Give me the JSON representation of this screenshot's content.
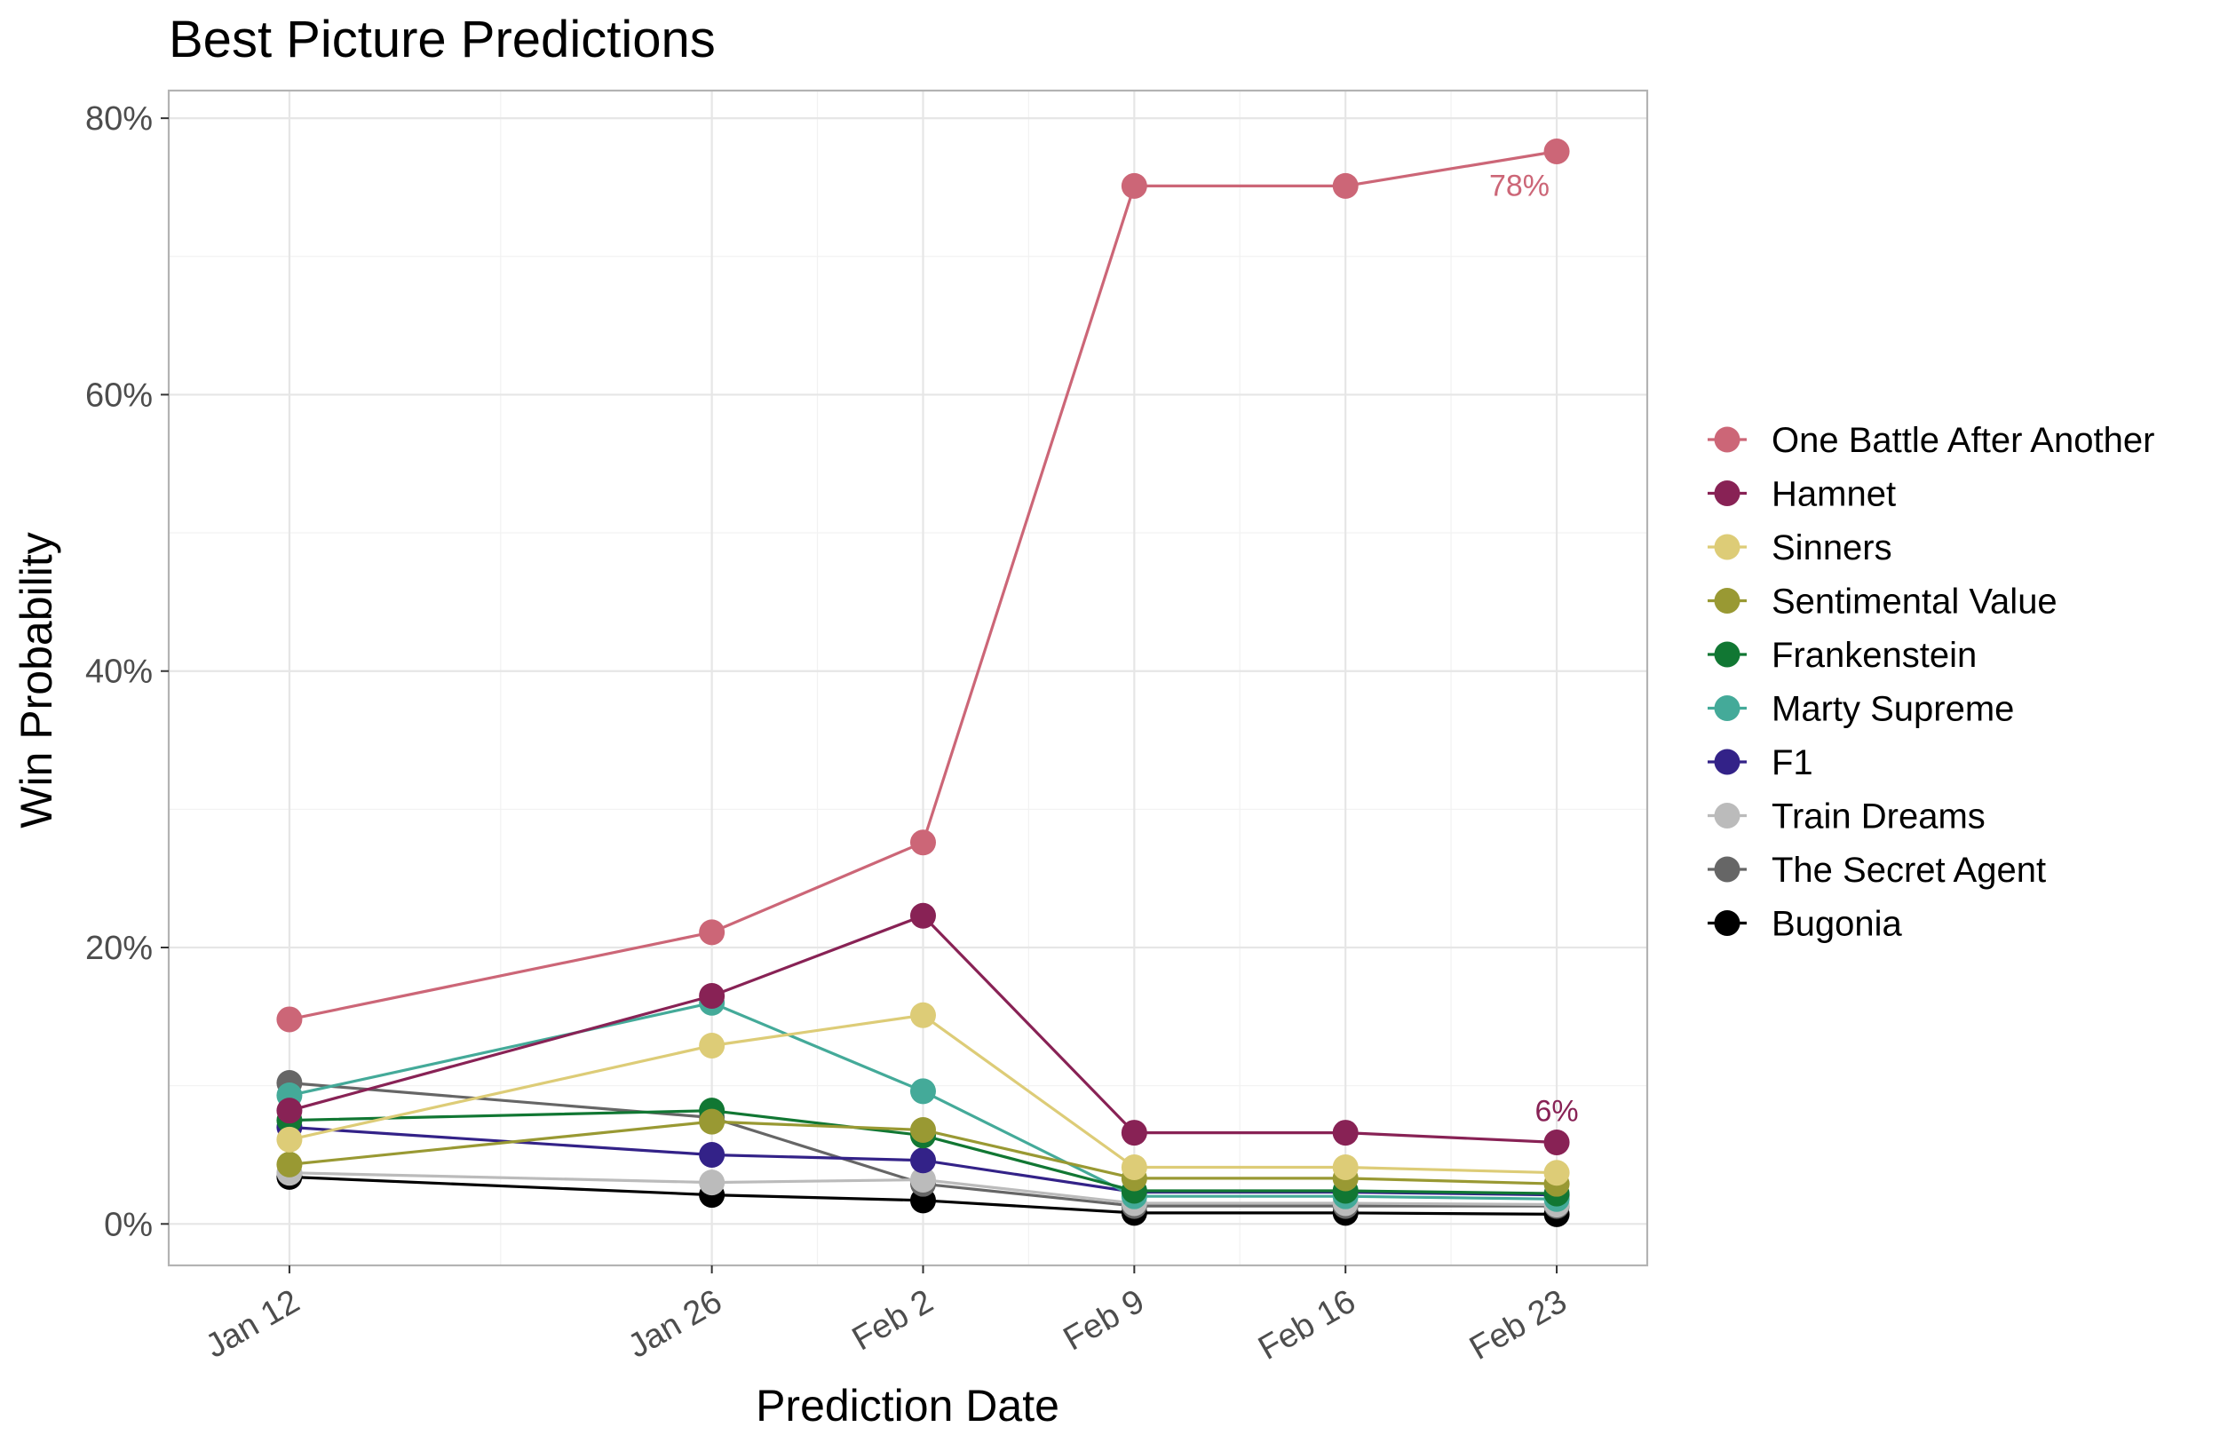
{
  "chart_data": {
    "type": "line",
    "title": "Best Picture Predictions",
    "xlabel": "Prediction Date",
    "ylabel": "Win Probability",
    "x": [
      "2026-01-12",
      "2026-01-26",
      "2026-02-02",
      "2026-02-09",
      "2026-02-16",
      "2026-02-23"
    ],
    "x_tick_labels": [
      "Jan 12",
      "Jan 26",
      "Feb  2",
      "Feb  9",
      "Feb 16",
      "Feb 23"
    ],
    "xlim": [
      "2026-01-08",
      "2026-02-26"
    ],
    "ylim": [
      -3,
      82
    ],
    "y_ticks": [
      0,
      20,
      40,
      60,
      80
    ],
    "y_tick_labels": [
      "0%",
      "20%",
      "40%",
      "60%",
      "80%"
    ],
    "grid": true,
    "legend_position": "right",
    "series": [
      {
        "name": "One Battle After Another",
        "color": "#CC6677",
        "values": [
          14.8,
          21.1,
          27.6,
          75.1,
          75.1,
          77.6
        ]
      },
      {
        "name": "Hamnet",
        "color": "#882255",
        "values": [
          8.2,
          16.5,
          22.3,
          6.6,
          6.6,
          5.9
        ]
      },
      {
        "name": "Sinners",
        "color": "#DDCC77",
        "values": [
          6.1,
          12.9,
          15.1,
          4.1,
          4.1,
          3.7
        ]
      },
      {
        "name": "Sentimental Value",
        "color": "#999933",
        "values": [
          4.3,
          7.4,
          6.8,
          3.3,
          3.3,
          2.9
        ]
      },
      {
        "name": "Frankenstein",
        "color": "#117733",
        "values": [
          7.5,
          8.2,
          6.4,
          2.4,
          2.4,
          2.2
        ]
      },
      {
        "name": "Marty Supreme",
        "color": "#44AA99",
        "values": [
          9.3,
          16.0,
          9.6,
          2.0,
          2.0,
          1.8
        ]
      },
      {
        "name": "F1",
        "color": "#332288",
        "values": [
          7.0,
          5.0,
          4.6,
          2.3,
          2.3,
          2.1
        ]
      },
      {
        "name": "Train Dreams",
        "color": "#BBBBBB",
        "values": [
          3.7,
          3.0,
          3.2,
          1.5,
          1.5,
          1.4
        ]
      },
      {
        "name": "The Secret Agent",
        "color": "#666666",
        "values": [
          10.2,
          7.7,
          2.9,
          1.3,
          1.3,
          1.3
        ]
      },
      {
        "name": "Bugonia",
        "color": "#000000",
        "values": [
          3.4,
          2.1,
          1.7,
          0.8,
          0.8,
          0.7
        ]
      }
    ],
    "annotations": [
      {
        "text": "78%",
        "series": "One Battle After Another",
        "x": "2026-02-23",
        "y": 77.6,
        "placement": "below-left"
      },
      {
        "text": "6%",
        "series": "Hamnet",
        "x": "2026-02-23",
        "y": 5.9,
        "placement": "above"
      }
    ]
  }
}
